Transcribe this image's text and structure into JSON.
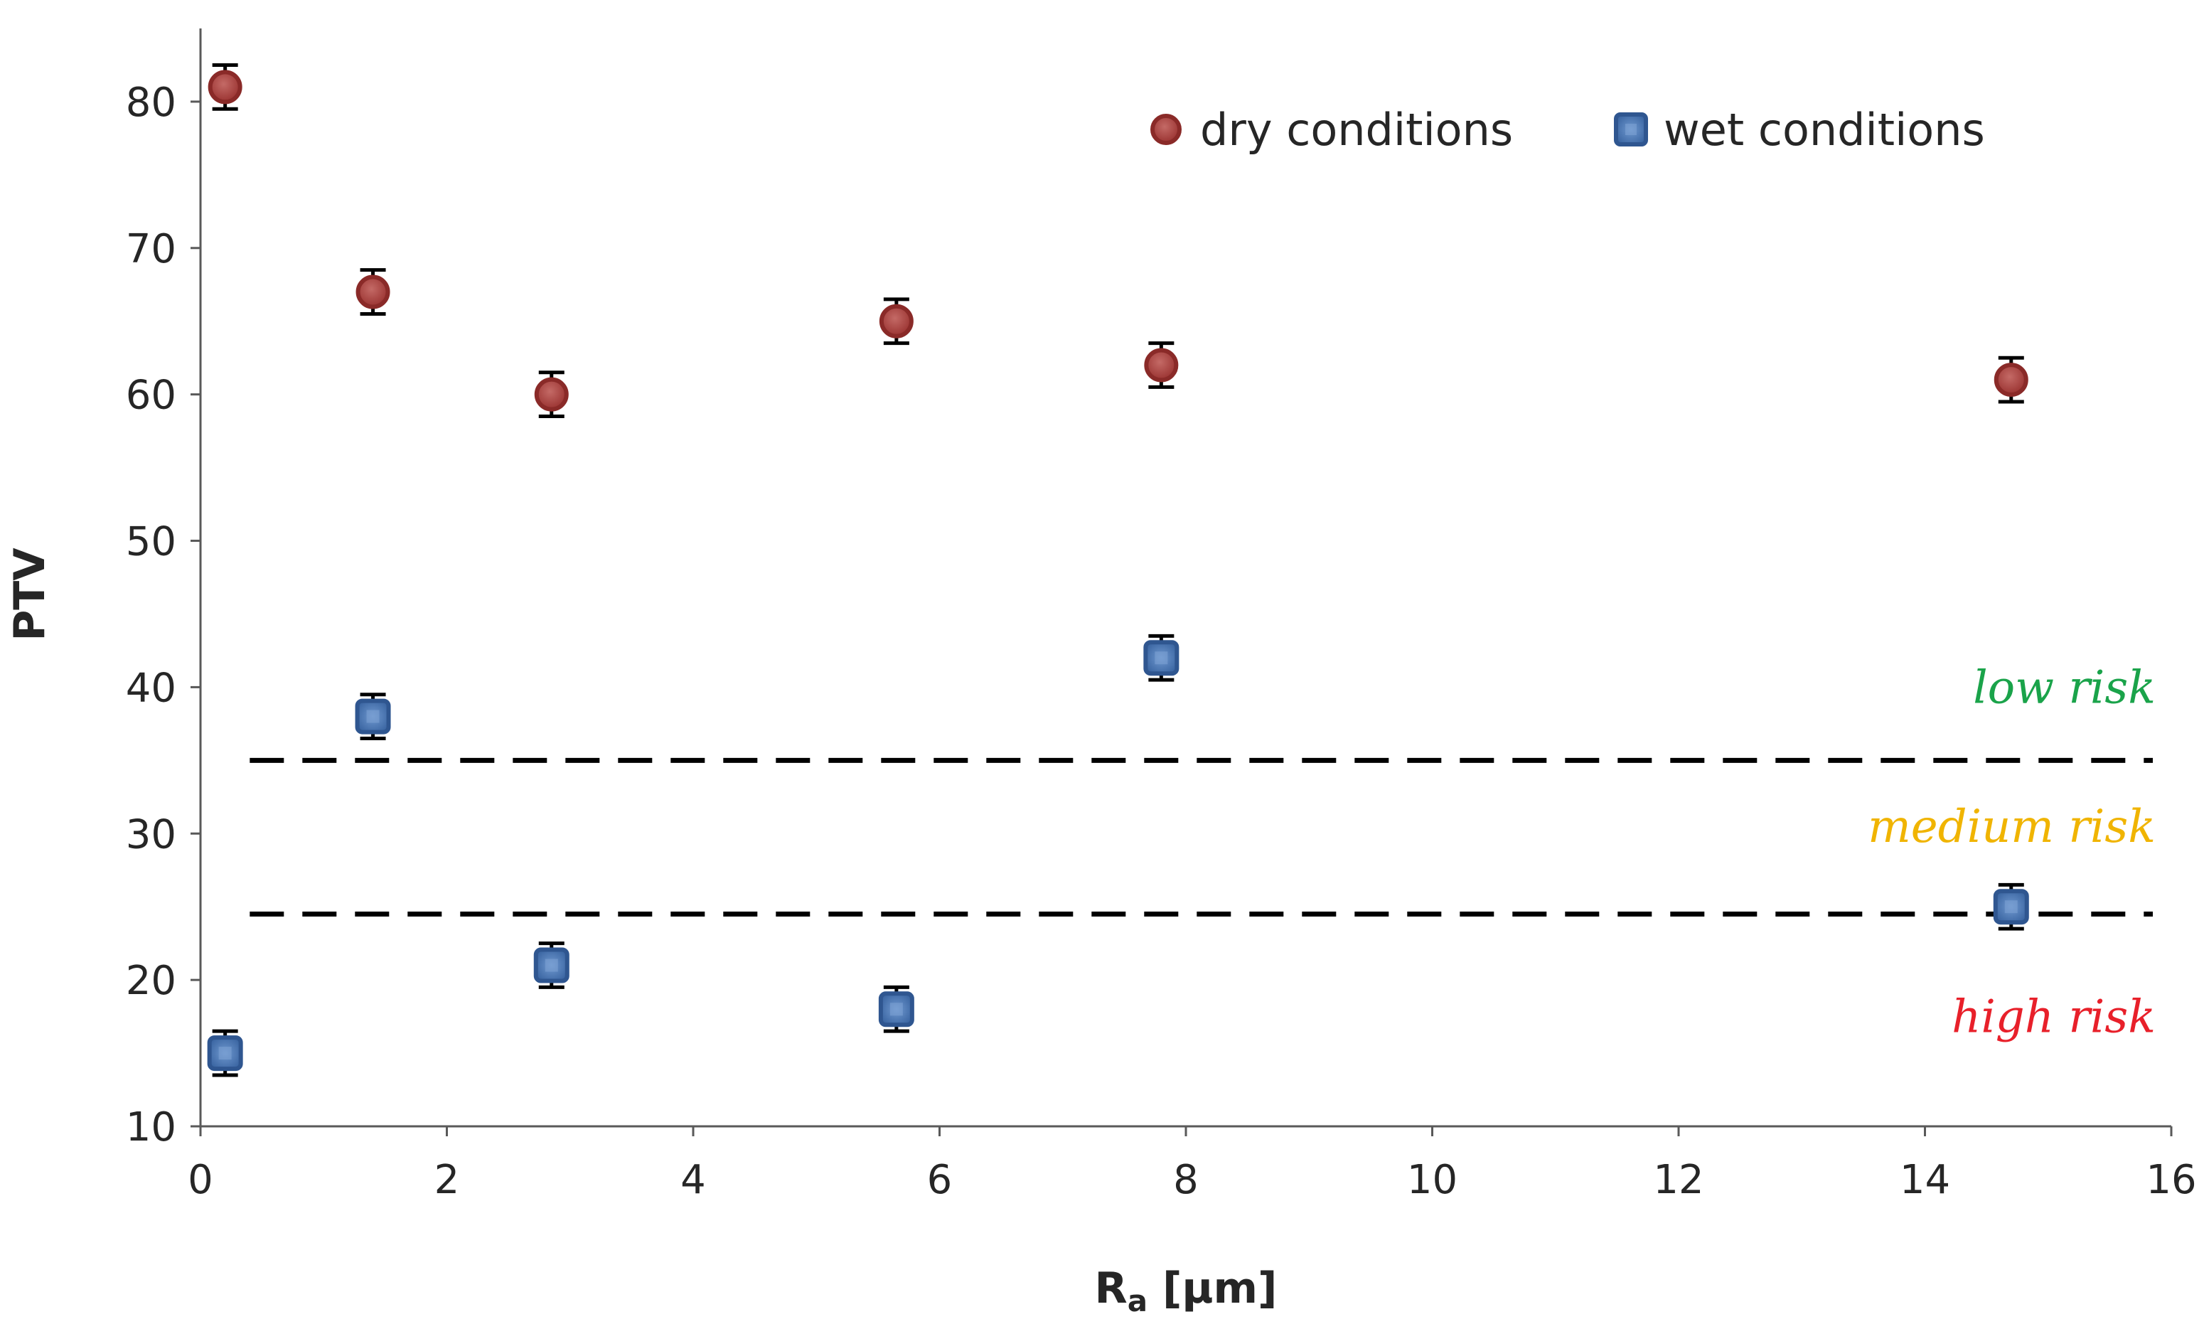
{
  "chart_data": {
    "type": "scatter",
    "title": "",
    "xlabel": "R",
    "xlabel_subscript": "a",
    "xlabel_suffix": " [µm]",
    "ylabel": "PTV",
    "xlim": [
      0,
      16
    ],
    "ylim": [
      10,
      85
    ],
    "x_ticks": [
      0,
      2,
      4,
      6,
      8,
      10,
      12,
      14,
      16
    ],
    "y_ticks": [
      10,
      20,
      30,
      40,
      50,
      60,
      70,
      80
    ],
    "legend_position": "top-right",
    "series": [
      {
        "name": "dry conditions",
        "marker": "circle",
        "color": "#a33a3a",
        "x": [
          0.2,
          1.4,
          2.85,
          5.65,
          7.8,
          14.7
        ],
        "y": [
          81,
          67,
          60,
          65,
          62,
          61
        ],
        "error": [
          1.5,
          1.5,
          1.5,
          1.5,
          1.5,
          1.5
        ]
      },
      {
        "name": "wet conditions",
        "marker": "square",
        "color": "#3e6aa8",
        "x": [
          0.2,
          1.4,
          2.85,
          5.65,
          7.8,
          14.7
        ],
        "y": [
          15,
          38,
          21,
          18,
          42,
          25
        ],
        "error": [
          1.5,
          1.5,
          1.5,
          1.5,
          1.5,
          1.5
        ]
      }
    ],
    "thresholds": [
      {
        "y": 35
      },
      {
        "y": 24.5
      }
    ],
    "risk_zones": [
      {
        "label": "low risk",
        "color": "#1aa34a",
        "y": 40
      },
      {
        "label": "medium risk",
        "color": "#f0b400",
        "y": 30.5
      },
      {
        "label": "high risk",
        "color": "#e8202a",
        "y": 17.5
      }
    ]
  }
}
